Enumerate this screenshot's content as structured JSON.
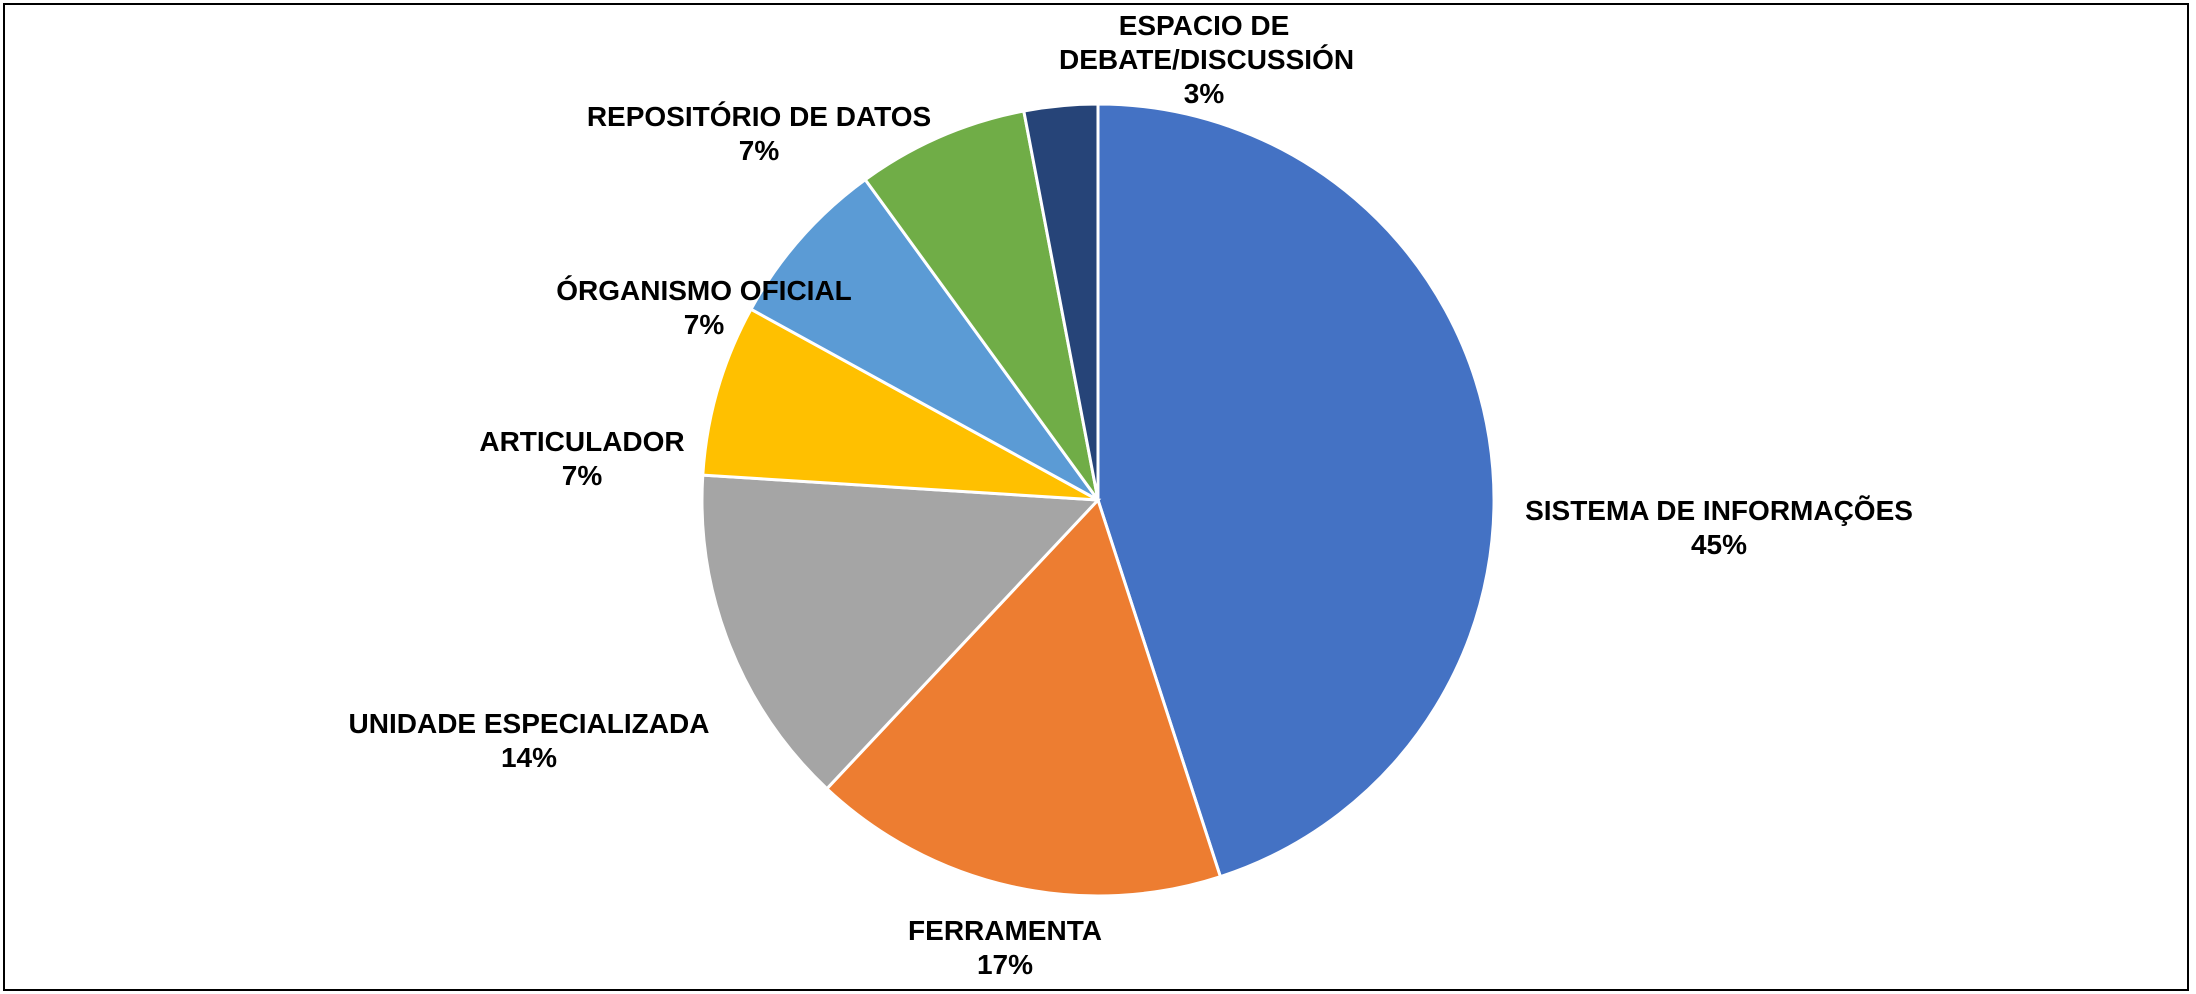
{
  "chart_data": {
    "type": "pie",
    "categories": [
      "SISTEMA DE INFORMAÇÕES",
      "FERRAMENTA",
      "UNIDADE ESPECIALIZADA",
      "ARTICULADOR",
      "ÓRGANISMO OFICIAL",
      "REPOSITÓRIO DE DATOS",
      "ESPACIO DE DEBATE/DISCUSSIÓN"
    ],
    "values": [
      45,
      17,
      14,
      7,
      7,
      7,
      3
    ],
    "value_labels": [
      "45%",
      "17%",
      "14%",
      "7%",
      "7%",
      "7%",
      "3%"
    ],
    "colors": [
      "#4472c4",
      "#ed7d31",
      "#a5a5a5",
      "#ffc000",
      "#5b9bd5",
      "#70ad47",
      "#264478"
    ]
  }
}
